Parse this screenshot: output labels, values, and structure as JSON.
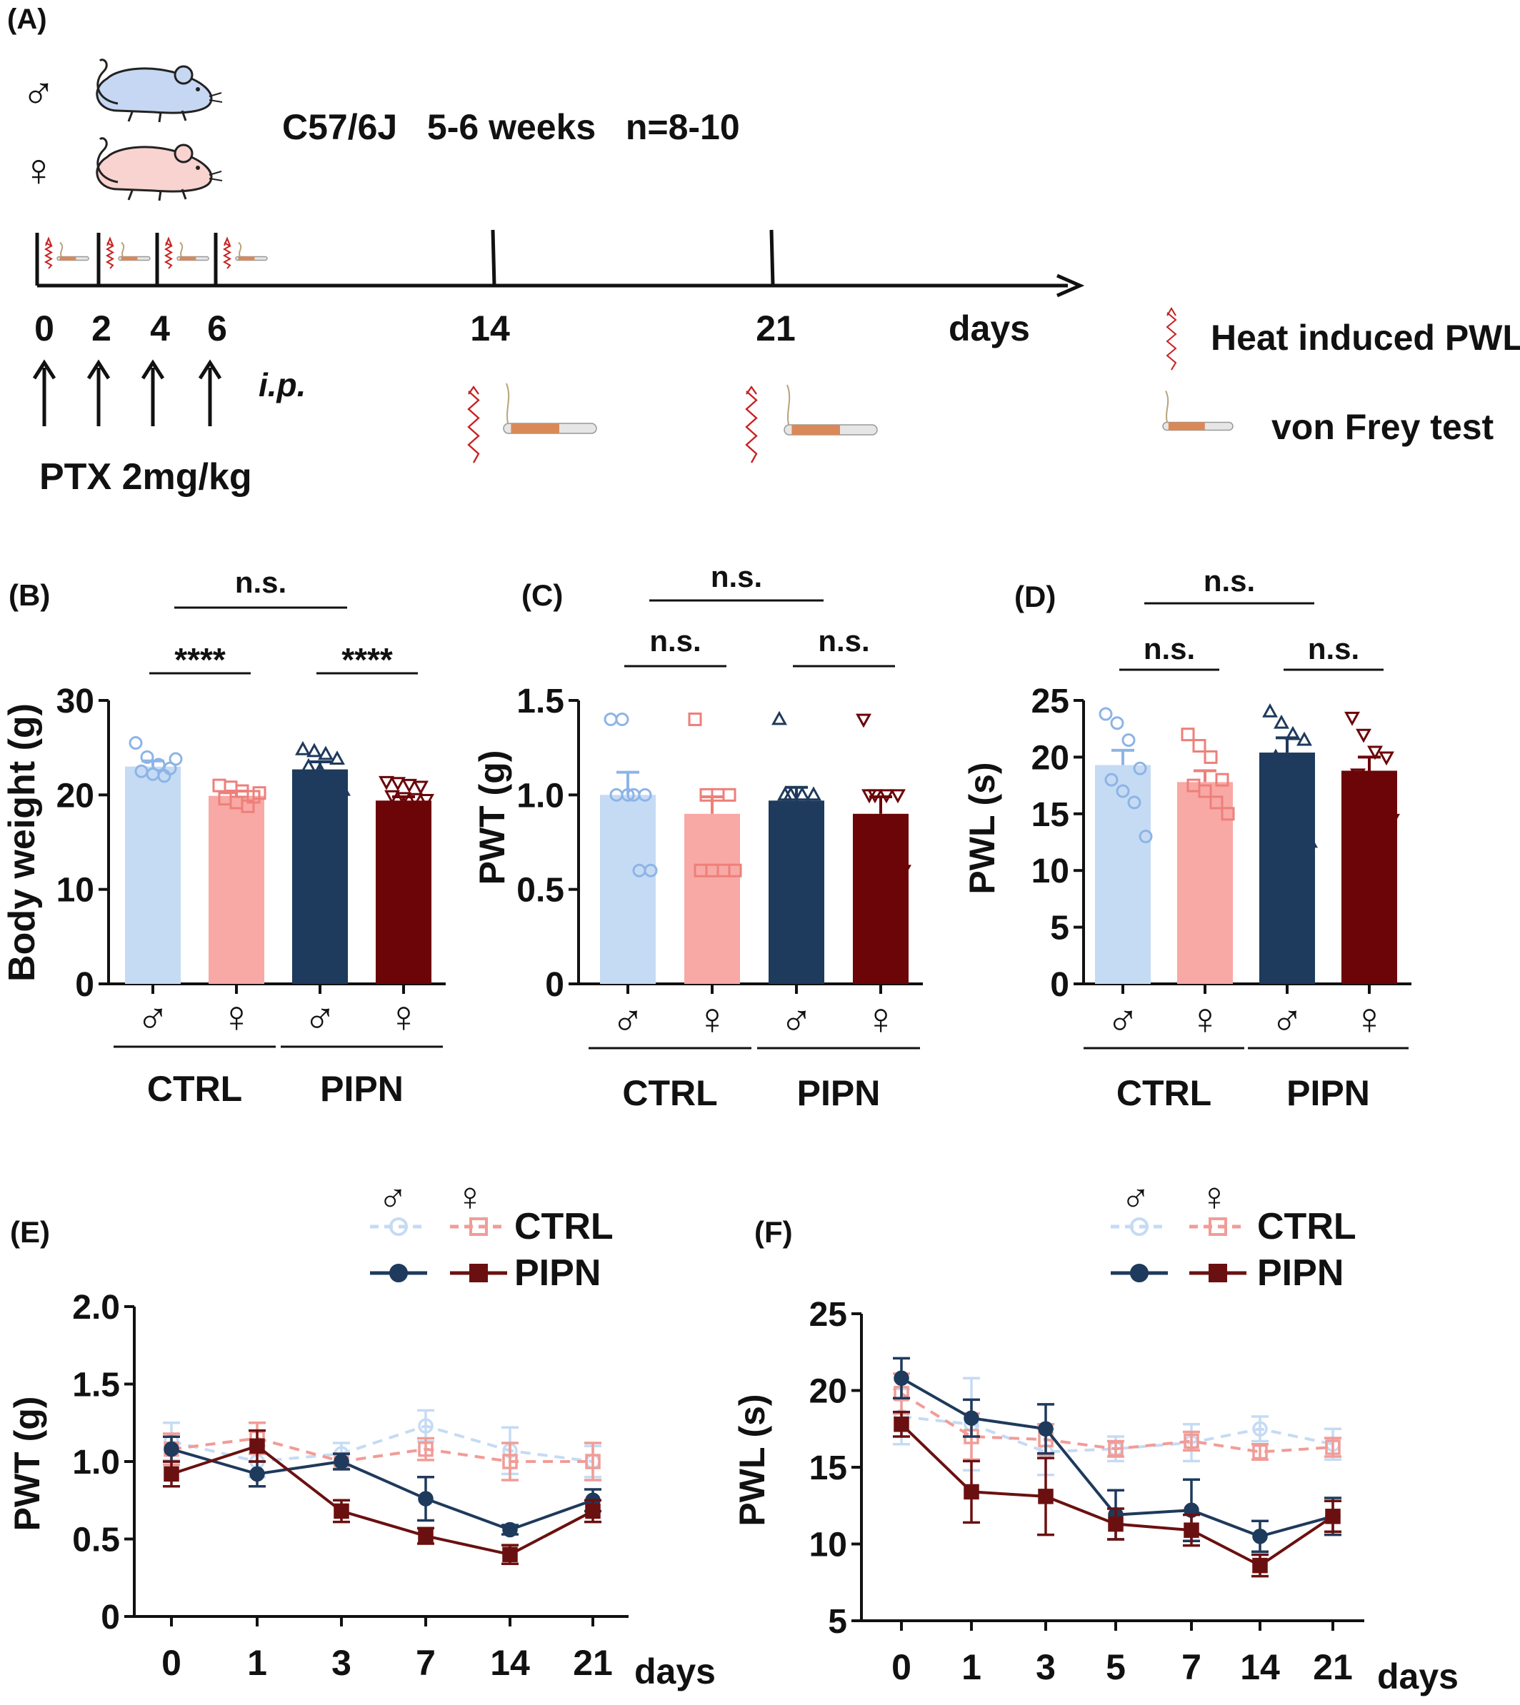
{
  "colors": {
    "ctrl_male": "#c5dbf4",
    "ctrl_male_pt": "#8db4e6",
    "ctrl_female": "#f8a9a5",
    "ctrl_female_pt": "#ee7f7a",
    "pipn_male": "#1e3a5c",
    "pipn_female": "#6b0508",
    "line_ctrl_male": "#c5dbf4",
    "line_ctrl_female": "#f19c97",
    "line_pipn_male": "#1e3a5c",
    "line_pipn_female": "#6b1010",
    "axis": "#111111",
    "squiggle": "#c8201f",
    "filament": "#d98957"
  },
  "panel_a": {
    "label": "(A)",
    "male_symbol": "♂",
    "female_symbol": "♀",
    "strain_info": "C57/6J   5-6 weeks   n=8-10",
    "timeline_days": [
      "0",
      "2",
      "4",
      "6",
      "14",
      "21"
    ],
    "days_label": "days",
    "route": "i.p.",
    "dose": "PTX 2mg/kg",
    "legend": [
      {
        "icon": "heat-squiggle-icon",
        "label": "Heat induced PWL"
      },
      {
        "icon": "von-frey-filament-icon",
        "label": "von Frey test"
      }
    ]
  },
  "chart_data": [
    {
      "panel": "(B)",
      "type": "bar",
      "ylabel": "Body weight (g)",
      "ylim": [
        0,
        30
      ],
      "yticks": [
        "0",
        "10",
        "20",
        "30"
      ],
      "categories": [
        "♂",
        "♀",
        "♂",
        "♀"
      ],
      "groups": [
        "CTRL",
        "PIPN"
      ],
      "values": [
        23.0,
        19.9,
        22.7,
        19.4
      ],
      "errors": [
        0.6,
        0.5,
        0.8,
        0.4
      ],
      "markers": [
        "circle",
        "square",
        "triangle-up",
        "triangle-down"
      ],
      "points": [
        [
          25.5,
          24.0,
          23.2,
          22.8,
          22.5,
          22.2,
          22.0,
          23.8
        ],
        [
          21.0,
          20.8,
          20.4,
          19.8,
          19.6,
          19.2,
          18.8,
          20.2
        ],
        [
          24.8,
          24.6,
          24.3,
          23.8,
          23.0,
          22.6,
          20.7,
          20.5
        ],
        [
          21.4,
          21.3,
          21.1,
          20.9,
          19.9,
          19.7,
          19.6,
          19.5
        ]
      ],
      "comparisons": [
        {
          "pair": [
            0,
            1
          ],
          "label": "****",
          "level": 1
        },
        {
          "pair": [
            2,
            3
          ],
          "label": "****",
          "level": 1
        },
        {
          "pair": [
            0.5,
            2.5
          ],
          "label": "n.s.",
          "level": 2
        }
      ]
    },
    {
      "panel": "(C)",
      "type": "bar",
      "ylabel": "PWT (g)",
      "ylim": [
        0,
        1.5
      ],
      "yticks": [
        "0",
        "0.5",
        "1.0",
        "1.5"
      ],
      "categories": [
        "♂",
        "♀",
        "♂",
        "♀"
      ],
      "groups": [
        "CTRL",
        "PIPN"
      ],
      "values": [
        1.0,
        0.9,
        0.97,
        0.9
      ],
      "errors": [
        0.12,
        0.09,
        0.07,
        0.09
      ],
      "markers": [
        "circle",
        "square",
        "triangle-up",
        "triangle-down"
      ],
      "points": [
        [
          1.4,
          1.4,
          1.0,
          1.0,
          1.0,
          1.0,
          0.6,
          0.6
        ],
        [
          1.4,
          1.0,
          1.0,
          1.0,
          0.6,
          0.6,
          0.6,
          0.6
        ],
        [
          1.4,
          1.0,
          1.0,
          1.0,
          1.0,
          0.6,
          0.6
        ],
        [
          1.4,
          1.0,
          1.0,
          1.0,
          1.0,
          0.6,
          0.6,
          0.6,
          0.6
        ]
      ],
      "comparisons": [
        {
          "pair": [
            0,
            1
          ],
          "label": "n.s.",
          "level": 1
        },
        {
          "pair": [
            2,
            3
          ],
          "label": "n.s.",
          "level": 1
        },
        {
          "pair": [
            0.5,
            2.5
          ],
          "label": "n.s.",
          "level": 2
        }
      ]
    },
    {
      "panel": "(D)",
      "type": "bar",
      "ylabel": "PWL (s)",
      "ylim": [
        0,
        25
      ],
      "yticks": [
        "0",
        "5",
        "10",
        "15",
        "20",
        "25"
      ],
      "categories": [
        "♂",
        "♀",
        "♂",
        "♀"
      ],
      "groups": [
        "CTRL",
        "PIPN"
      ],
      "values": [
        19.3,
        17.8,
        20.4,
        18.8
      ],
      "errors": [
        1.3,
        1.0,
        1.3,
        1.2
      ],
      "markers": [
        "circle",
        "square",
        "triangle-up",
        "triangle-down"
      ],
      "points": [
        [
          23.8,
          23.0,
          21.5,
          19.0,
          18.0,
          17.0,
          16.0,
          13.0
        ],
        [
          22.0,
          21.0,
          20.0,
          18.0,
          17.5,
          17.0,
          16.0,
          15.0
        ],
        [
          24.0,
          23.0,
          22.0,
          21.5,
          20.0,
          18.5,
          15.5,
          12.5
        ],
        [
          23.5,
          22.0,
          20.5,
          20.0,
          18.5,
          17.0,
          16.5,
          14.5
        ]
      ],
      "comparisons": [
        {
          "pair": [
            0,
            1
          ],
          "label": "n.s.",
          "level": 1
        },
        {
          "pair": [
            2,
            3
          ],
          "label": "n.s.",
          "level": 1
        },
        {
          "pair": [
            0.5,
            2.5
          ],
          "label": "n.s.",
          "level": 2
        }
      ]
    },
    {
      "panel": "(E)",
      "type": "line",
      "ylabel": "PWT (g)",
      "xlabel": "days",
      "x": [
        "0",
        "1",
        "3",
        "7",
        "14",
        "21"
      ],
      "ylim": [
        0,
        2.0
      ],
      "yticks": [
        "0",
        "0.5",
        "1.0",
        "1.5",
        "2.0"
      ],
      "legend_columns": [
        "♂",
        "♀"
      ],
      "legend_rows": [
        "CTRL",
        "PIPN"
      ],
      "series": [
        {
          "group": "CTRL",
          "sex": "male",
          "values": [
            1.13,
            1.0,
            1.05,
            1.23,
            1.07,
            1.0
          ],
          "errors": [
            0.12,
            0.1,
            0.07,
            0.1,
            0.15,
            0.1
          ]
        },
        {
          "group": "CTRL",
          "sex": "female",
          "values": [
            1.08,
            1.15,
            1.0,
            1.08,
            1.0,
            1.0
          ],
          "errors": [
            0.1,
            0.1,
            0.05,
            0.07,
            0.12,
            0.12
          ]
        },
        {
          "group": "PIPN",
          "sex": "male",
          "values": [
            1.08,
            0.92,
            1.0,
            0.76,
            0.56,
            0.75
          ],
          "errors": [
            0.08,
            0.08,
            0.05,
            0.14,
            0.03,
            0.07
          ]
        },
        {
          "group": "PIPN",
          "sex": "female",
          "values": [
            0.92,
            1.1,
            0.68,
            0.52,
            0.4,
            0.68
          ],
          "errors": [
            0.08,
            0.1,
            0.07,
            0.05,
            0.06,
            0.07
          ]
        }
      ]
    },
    {
      "panel": "(F)",
      "type": "line",
      "ylabel": "PWL (s)",
      "xlabel": "days",
      "x": [
        "0",
        "1",
        "3",
        "5",
        "7",
        "14",
        "21"
      ],
      "ylim": [
        5,
        25
      ],
      "yticks": [
        "5",
        "10",
        "15",
        "20",
        "25"
      ],
      "legend_columns": [
        "♂",
        "♀"
      ],
      "legend_rows": [
        "CTRL",
        "PIPN"
      ],
      "series": [
        {
          "group": "CTRL",
          "sex": "male",
          "values": [
            18.3,
            17.8,
            16.0,
            16.2,
            16.6,
            17.5,
            16.5
          ],
          "errors": [
            1.8,
            3.0,
            1.5,
            0.8,
            1.2,
            0.8,
            1.0
          ]
        },
        {
          "group": "CTRL",
          "sex": "female",
          "values": [
            19.8,
            17.0,
            16.8,
            16.2,
            16.7,
            16.0,
            16.3
          ],
          "errors": [
            1.3,
            1.5,
            1.0,
            0.5,
            0.6,
            0.5,
            0.6
          ]
        },
        {
          "group": "PIPN",
          "sex": "male",
          "values": [
            20.8,
            18.2,
            17.5,
            11.9,
            12.2,
            10.5,
            11.8
          ],
          "errors": [
            1.3,
            1.2,
            1.6,
            1.6,
            2.0,
            1.0,
            1.2
          ]
        },
        {
          "group": "PIPN",
          "sex": "female",
          "values": [
            17.8,
            13.4,
            13.1,
            11.3,
            10.9,
            8.6,
            11.8
          ],
          "errors": [
            0.8,
            2.0,
            2.5,
            1.0,
            1.0,
            0.7,
            1.0
          ]
        }
      ]
    }
  ]
}
